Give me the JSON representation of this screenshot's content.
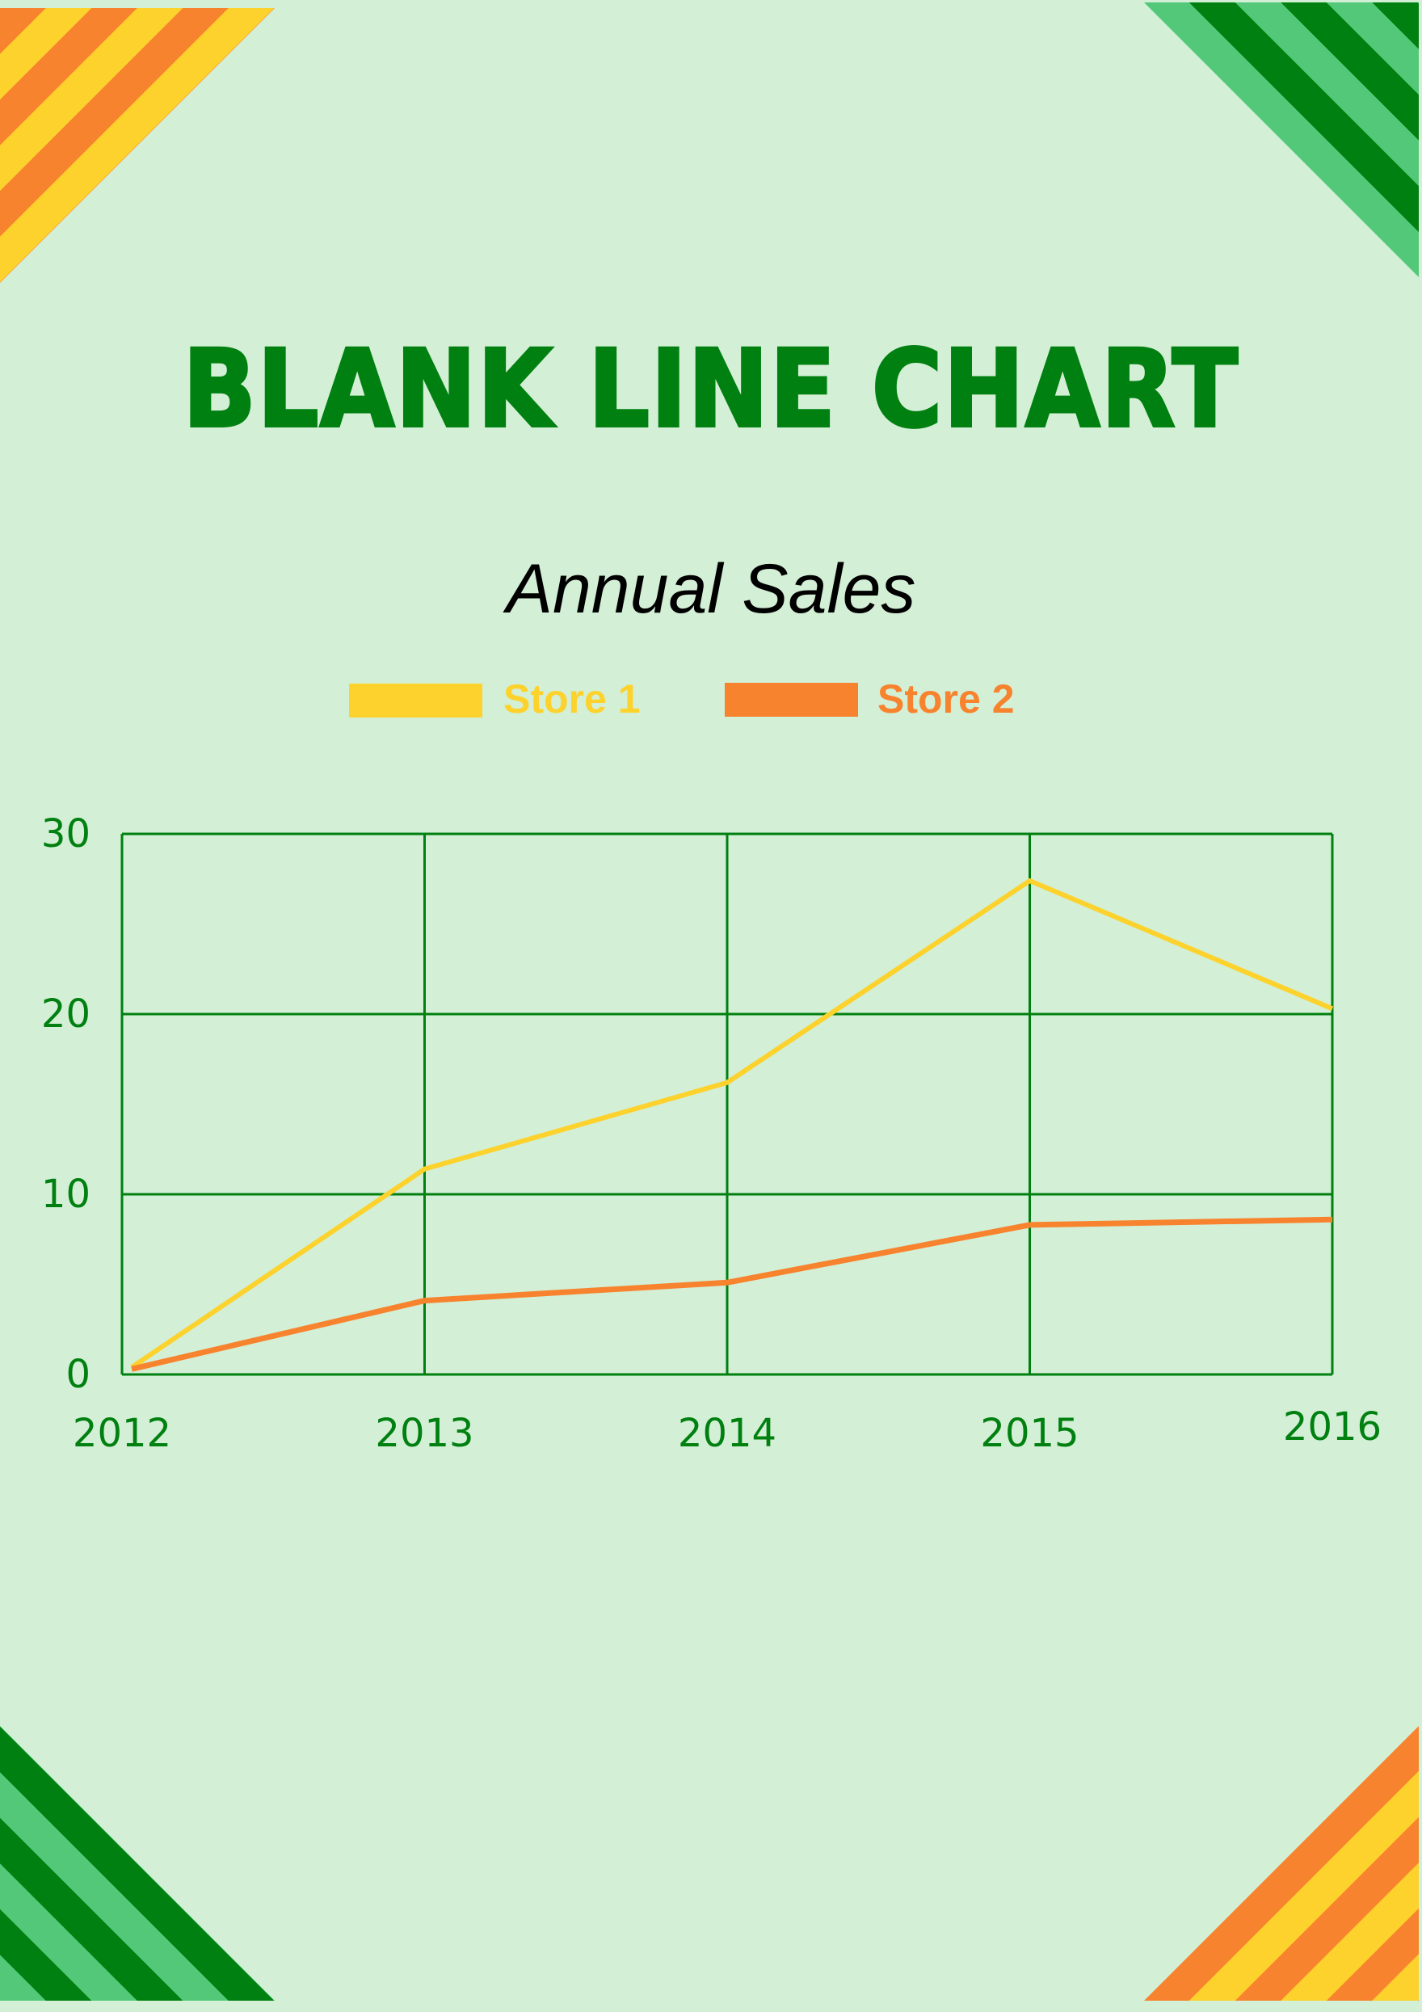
{
  "colors": {
    "background": "#d3efd5",
    "grid": "#008010",
    "store1": "#fdd22c",
    "store2": "#f8832e",
    "title": "#008010"
  },
  "chart_data": {
    "type": "line",
    "title": "BLANK LINE CHART",
    "subtitle": "Annual Sales",
    "xlabel": "",
    "ylabel": "",
    "categories": [
      "2012",
      "2013",
      "2014",
      "2015",
      "2016"
    ],
    "ylim": [
      0,
      30
    ],
    "yticks": [
      "0",
      "10",
      "20",
      "30"
    ],
    "grid": true,
    "legend": "top",
    "series": [
      {
        "name": "Store 1",
        "color": "#fdd22c",
        "values": [
          0.4,
          11.4,
          16.2,
          27.4,
          20.3
        ]
      },
      {
        "name": "Store 2",
        "color": "#f8832e",
        "values": [
          0.3,
          4.1,
          5.1,
          8.3,
          8.6
        ]
      }
    ]
  }
}
